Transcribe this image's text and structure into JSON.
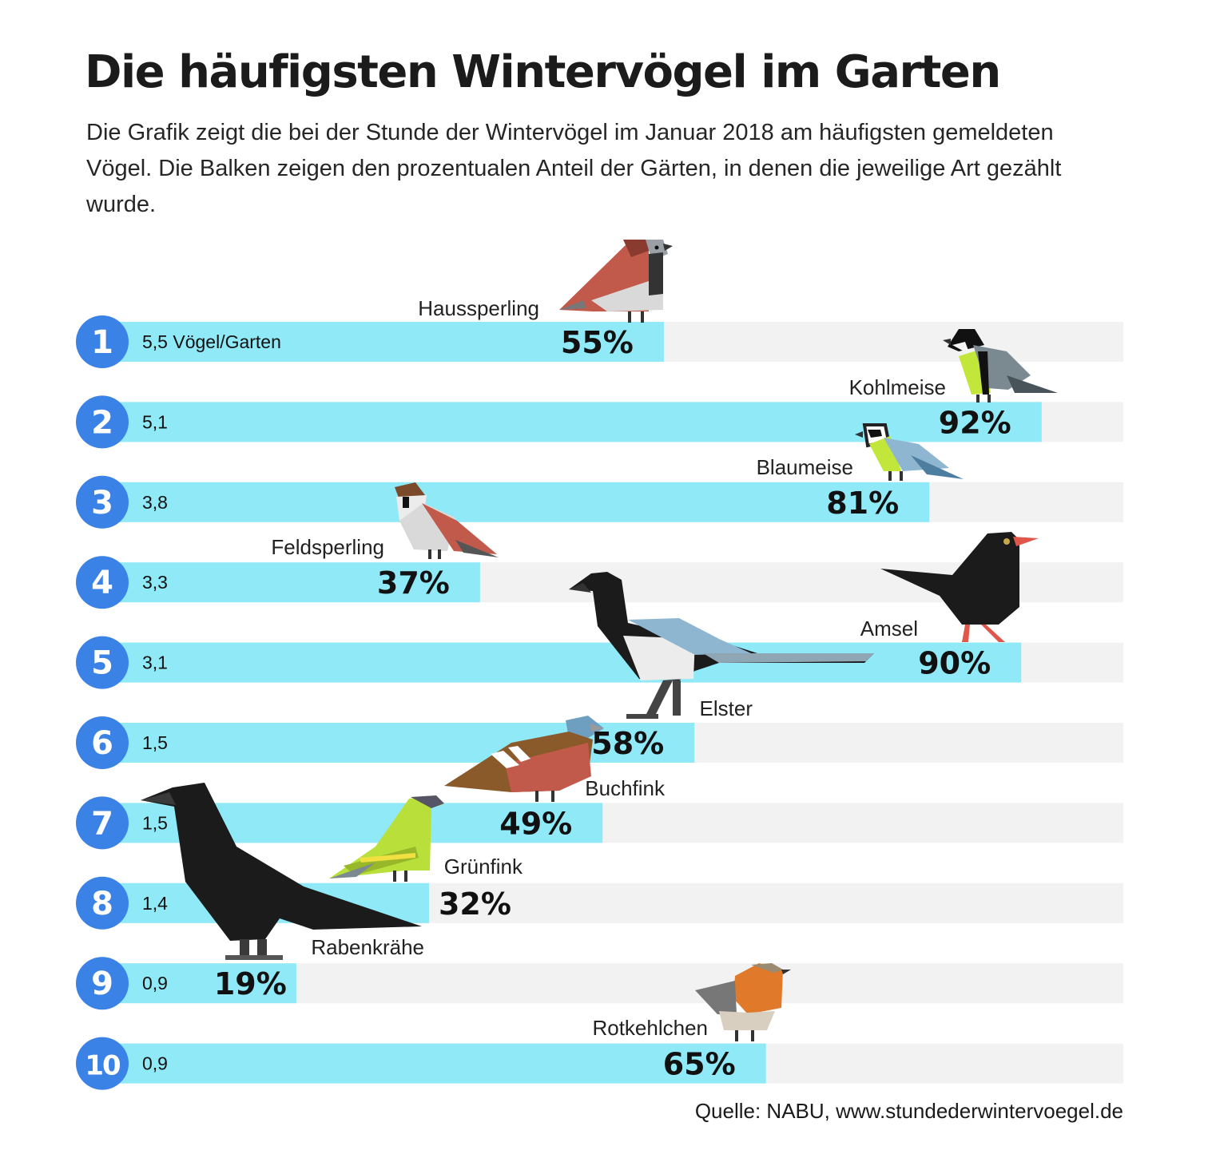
{
  "title": "Die häufigsten Wintervögel im Garten",
  "subtitle": "Die Grafik zeigt die bei der Stunde der Wintervögel im Januar 2018 am häufigsten gemeldeten Vögel. Die Balken zeigen den prozentualen Anteil der Gärten, in denen die jeweilige Art gezählt wurde.",
  "source": "Quelle: NABU, www.stundederwintervoegel.de",
  "colors": {
    "bar": "#8fe9f7",
    "track": "#f2f2f2",
    "rank_circle": "#3b82e6"
  },
  "chart_data": {
    "type": "bar",
    "orientation": "horizontal",
    "xlim": [
      0,
      100
    ],
    "grid": false,
    "categories": [
      "Haussperling",
      "Kohlmeise",
      "Blaumeise",
      "Feldsperling",
      "Amsel",
      "Elster",
      "Buchfink",
      "Grünfink",
      "Rabenkrähe",
      "Rotkehlchen"
    ],
    "ranks": [
      "1",
      "2",
      "3",
      "4",
      "5",
      "6",
      "7",
      "8",
      "9",
      "10"
    ],
    "counts": [
      "5,5 Vögel/Garten",
      "5,1",
      "3,8",
      "3,3",
      "3,1",
      "1,5",
      "1,5",
      "1,4",
      "0,9",
      "0,9"
    ],
    "values": [
      55,
      92,
      81,
      37,
      90,
      58,
      49,
      32,
      19,
      65
    ],
    "value_labels": [
      "55%",
      "92%",
      "81%",
      "37%",
      "90%",
      "58%",
      "49%",
      "32%",
      "19%",
      "65%"
    ]
  }
}
